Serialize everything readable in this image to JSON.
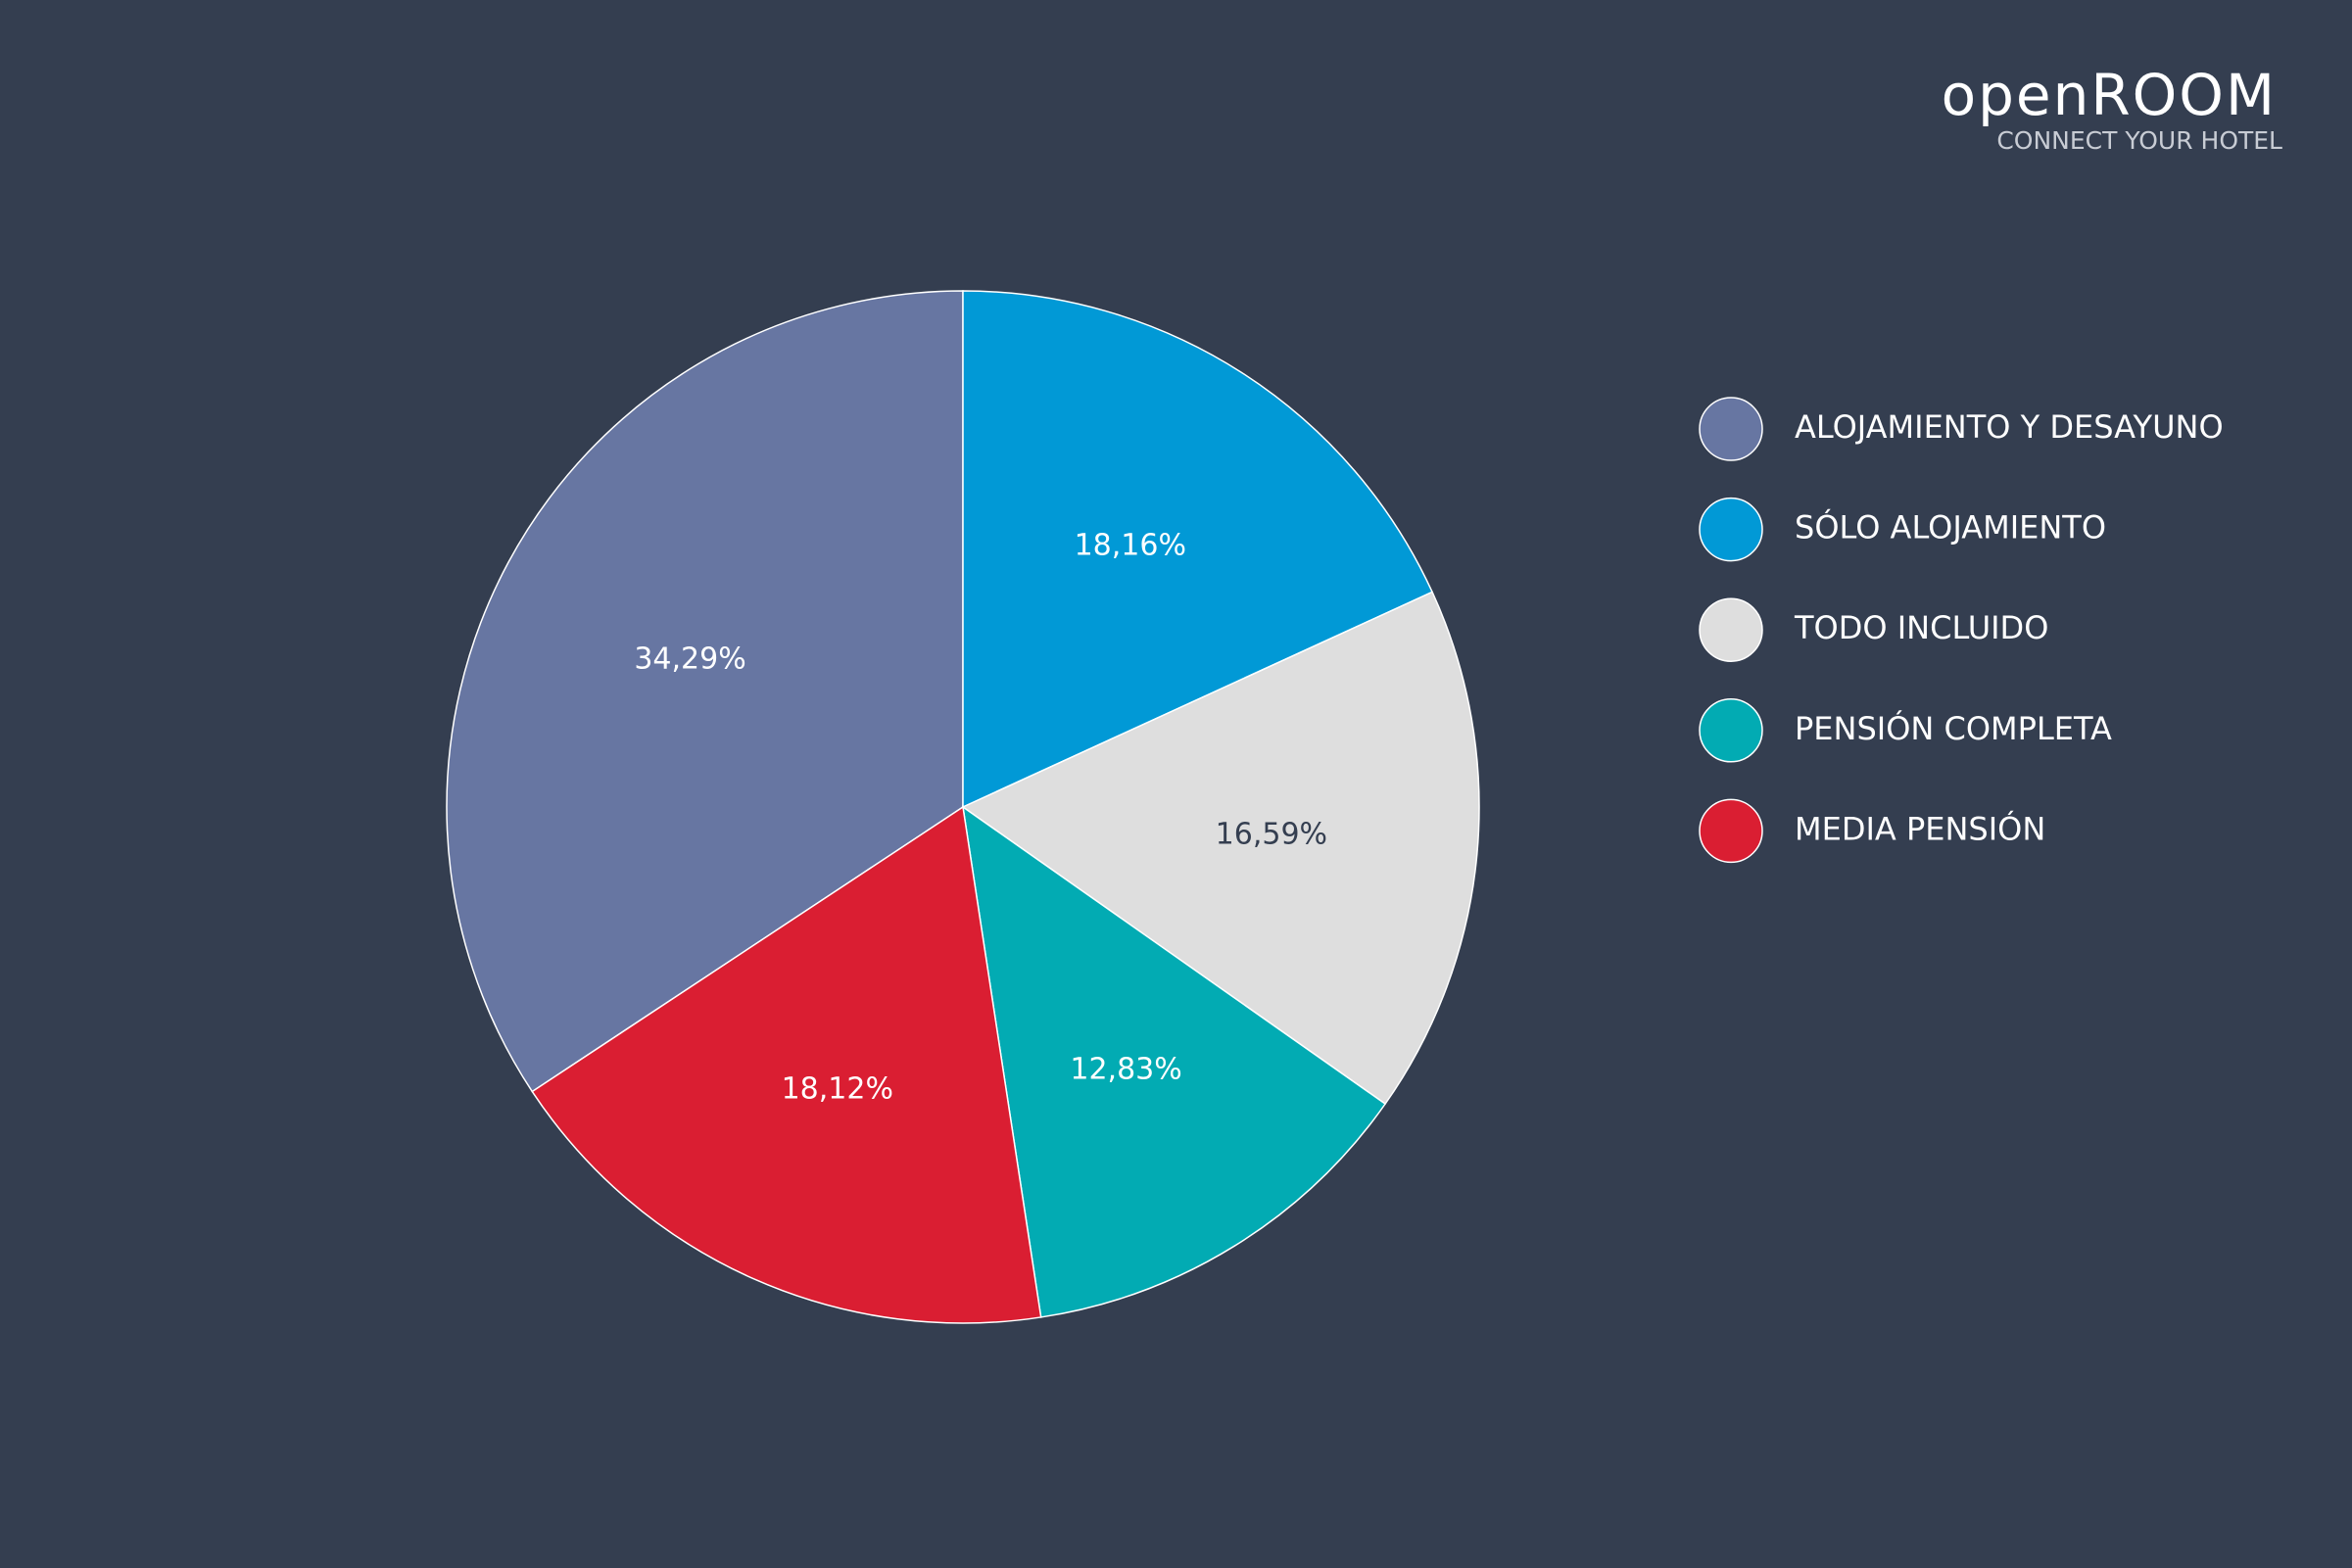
{
  "logo": {
    "name": "openROOM",
    "tagline": "CONNECT YOUR HOTEL"
  },
  "chart_data": {
    "type": "pie",
    "categories": [
      "ALOJAMIENTO Y DESAYUNO",
      "SÓLO ALOJAMIENTO",
      "TODO INCLUIDO",
      "PENSIÓN COMPLETA",
      "MEDIA PENSIÓN"
    ],
    "values": [
      34.29,
      18.16,
      16.59,
      12.83,
      18.12
    ],
    "value_labels": [
      "34,29%",
      "18,16%",
      "16,59%",
      "12,83%",
      "18,12%"
    ],
    "colors": [
      "#6776a2",
      "#0199d6",
      "#dedede",
      "#02abb3",
      "#da1e32"
    ],
    "legend": "right"
  }
}
